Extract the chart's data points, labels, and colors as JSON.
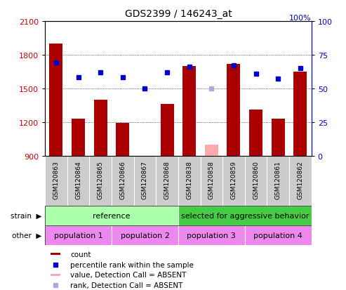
{
  "title": "GDS2399 / 146243_at",
  "samples": [
    "GSM120863",
    "GSM120864",
    "GSM120865",
    "GSM120866",
    "GSM120867",
    "GSM120868",
    "GSM120838",
    "GSM120858",
    "GSM120859",
    "GSM120860",
    "GSM120861",
    "GSM120862"
  ],
  "count_values": [
    1900,
    1230,
    1400,
    1195,
    870,
    1360,
    1700,
    null,
    1720,
    1310,
    1230,
    1650
  ],
  "absent_count_value": 1000,
  "absent_count_index": 7,
  "percentile_values": [
    69,
    58,
    62,
    58,
    50,
    62,
    66,
    null,
    67,
    61,
    57,
    65
  ],
  "absent_percentile_value": 50,
  "absent_percentile_index": 7,
  "ylim_left": [
    900,
    2100
  ],
  "ylim_right": [
    0,
    100
  ],
  "yticks_left": [
    900,
    1200,
    1500,
    1800,
    2100
  ],
  "yticks_right": [
    0,
    25,
    50,
    75,
    100
  ],
  "bar_color": "#aa0000",
  "absent_bar_color": "#ffaaaa",
  "dot_color": "#0000cc",
  "absent_dot_color": "#aaaadd",
  "strain_labels": [
    {
      "text": "reference",
      "start": 0,
      "end": 5,
      "color": "#aaffaa"
    },
    {
      "text": "selected for aggressive behavior",
      "start": 6,
      "end": 11,
      "color": "#44cc44"
    }
  ],
  "other_labels": [
    {
      "text": "population 1",
      "start": 0,
      "end": 2,
      "color": "#ee88ee"
    },
    {
      "text": "population 2",
      "start": 3,
      "end": 5,
      "color": "#ee88ee"
    },
    {
      "text": "population 3",
      "start": 6,
      "end": 8,
      "color": "#ee88ee"
    },
    {
      "text": "population 4",
      "start": 9,
      "end": 11,
      "color": "#ee88ee"
    }
  ],
  "grid_color": "#000000",
  "tick_label_color_left": "#cc0000",
  "tick_label_color_right": "#0000cc",
  "legend_items": [
    {
      "label": "count",
      "color": "#aa0000",
      "type": "bar"
    },
    {
      "label": "percentile rank within the sample",
      "color": "#0000cc",
      "type": "dot"
    },
    {
      "label": "value, Detection Call = ABSENT",
      "color": "#ffaaaa",
      "type": "bar"
    },
    {
      "label": "rank, Detection Call = ABSENT",
      "color": "#aaaadd",
      "type": "dot"
    }
  ],
  "xticklabel_bg": "#cccccc"
}
